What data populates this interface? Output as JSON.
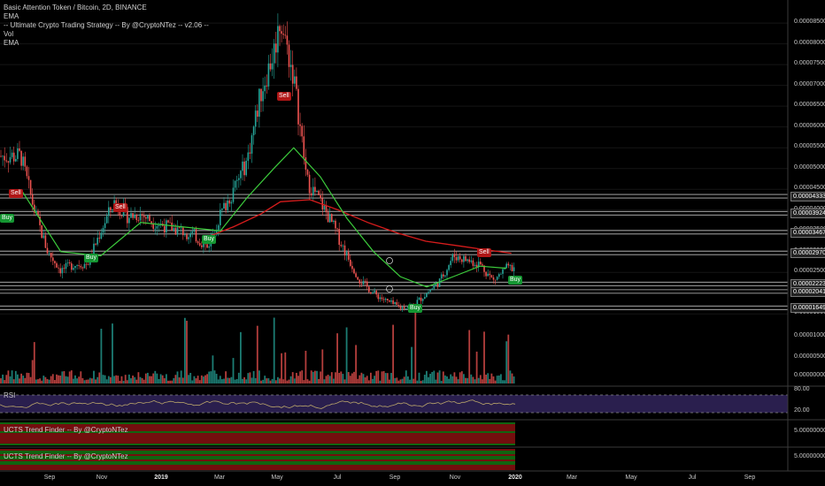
{
  "legend": {
    "title": "Basic Attention Token / Bitcoin, 2D, BINANCE",
    "lines": [
      "EMA",
      "-- Ultimate Crypto Trading Strategy -- By @CryptoNTez -- v2.06 --",
      "Vol",
      "EMA"
    ]
  },
  "panes": {
    "rsi_label": "RSI",
    "trend1_label": "UCTS Trend Finder -- By @CryptoNTez",
    "trend2_label": "UCTS Trend Finder -- By @CryptoNTez"
  },
  "colors": {
    "up": "#26a69a",
    "down": "#ef5350",
    "ema_fast": "#3ccc3c",
    "ema_slow": "#d81c1c",
    "rsi_line": "#b8a46a",
    "rsi_band": "#2a1f4e",
    "trend_green": "#1aa11a",
    "trend_red": "#b81717"
  },
  "chart_data": {
    "type": "candlestick",
    "symbol": "BAT/BTC",
    "timeframe": "2D",
    "exchange": "BINANCE",
    "price_axis_ticks": [
      "0.00008500",
      "0.00008000",
      "0.00007500",
      "0.00007000",
      "0.00006500",
      "0.00006000",
      "0.00005500",
      "0.00005000",
      "0.00004500",
      "0.00004000",
      "0.00003500",
      "0.00003000",
      "0.00002500",
      "0.00002000",
      "0.00001500"
    ],
    "price_range": [
      1.3e-05,
      8.9e-05
    ],
    "volume_axis_ticks": [
      "0.00001000",
      "0.00000500",
      "0.00000000"
    ],
    "rsi_axis_ticks": [
      "80.00",
      "20.00"
    ],
    "trend_axis_ticks": [
      "5.00000000",
      "5.00000000"
    ],
    "horizontal_levels": [
      "0.00004333",
      "0.00003924",
      "0.00003467",
      "0.00002970",
      "0.00002223",
      "0.00002041",
      "0.00001649"
    ],
    "x_ticks": [
      "Sep",
      "Nov",
      "2019",
      "Mar",
      "May",
      "Jul",
      "Sep",
      "Nov",
      "2020",
      "Mar",
      "May",
      "Jul",
      "Sep"
    ],
    "bold_x_ticks": [
      "2019",
      "2020"
    ],
    "close_trace": [
      [
        "2018-08-01",
        5.3e-05
      ],
      [
        "2018-08-15",
        4e-05
      ],
      [
        "2018-08-29",
        3e-05
      ],
      [
        "2018-09-12",
        2.55e-05
      ],
      [
        "2018-09-26",
        2.7e-05
      ],
      [
        "2018-10-10",
        2.7e-05
      ],
      [
        "2018-10-24",
        3.5e-05
      ],
      [
        "2018-11-07",
        4.2e-05
      ],
      [
        "2018-11-21",
        3.85e-05
      ],
      [
        "2018-12-05",
        3.9e-05
      ],
      [
        "2018-12-19",
        3.7e-05
      ],
      [
        "2019-01-02",
        3.6e-05
      ],
      [
        "2019-01-16",
        3.5e-05
      ],
      [
        "2019-01-30",
        3.4e-05
      ],
      [
        "2019-02-13",
        3.1e-05
      ],
      [
        "2019-02-27",
        3.9e-05
      ],
      [
        "2019-03-13",
        4.5e-05
      ],
      [
        "2019-03-27",
        5.2e-05
      ],
      [
        "2019-04-10",
        6.8e-05
      ],
      [
        "2019-04-24",
        7.8e-05
      ],
      [
        "2019-05-01",
        8.6e-05
      ],
      [
        "2019-05-15",
        7.2e-05
      ],
      [
        "2019-05-29",
        4.7e-05
      ],
      [
        "2019-06-12",
        4.2e-05
      ],
      [
        "2019-06-26",
        3.6e-05
      ],
      [
        "2019-07-10",
        2.9e-05
      ],
      [
        "2019-07-24",
        2.3e-05
      ],
      [
        "2019-08-07",
        2e-05
      ],
      [
        "2019-08-21",
        1.8e-05
      ],
      [
        "2019-09-04",
        1.65e-05
      ],
      [
        "2019-09-18",
        1.72e-05
      ],
      [
        "2019-10-02",
        2e-05
      ],
      [
        "2019-10-16",
        2.3e-05
      ],
      [
        "2019-10-30",
        2.9e-05
      ],
      [
        "2019-11-13",
        2.8e-05
      ],
      [
        "2019-11-27",
        2.7e-05
      ],
      [
        "2019-12-11",
        2.3e-05
      ],
      [
        "2019-12-25",
        2.6e-05
      ]
    ],
    "ema_fast_trace": [
      [
        "2018-08-01",
        4.5e-05
      ],
      [
        "2018-09-12",
        3e-05
      ],
      [
        "2018-10-24",
        2.9e-05
      ],
      [
        "2018-12-05",
        3.7e-05
      ],
      [
        "2019-01-16",
        3.6e-05
      ],
      [
        "2019-02-27",
        3.5e-05
      ],
      [
        "2019-03-27",
        4.3e-05
      ],
      [
        "2019-04-24",
        5e-05
      ],
      [
        "2019-05-15",
        5.5e-05
      ],
      [
        "2019-06-12",
        4.8e-05
      ],
      [
        "2019-07-10",
        3.8e-05
      ],
      [
        "2019-08-07",
        3e-05
      ],
      [
        "2019-09-04",
        2.4e-05
      ],
      [
        "2019-10-02",
        2.15e-05
      ],
      [
        "2019-10-30",
        2.4e-05
      ],
      [
        "2019-11-27",
        2.65e-05
      ],
      [
        "2019-12-25",
        2.6e-05
      ]
    ],
    "ema_slow_trace": [
      [
        "2019-02-13",
        3.35e-05
      ],
      [
        "2019-03-13",
        3.6e-05
      ],
      [
        "2019-04-10",
        3.9e-05
      ],
      [
        "2019-05-01",
        4.2e-05
      ],
      [
        "2019-06-01",
        4.25e-05
      ],
      [
        "2019-07-01",
        4e-05
      ],
      [
        "2019-08-01",
        3.7e-05
      ],
      [
        "2019-09-01",
        3.45e-05
      ],
      [
        "2019-10-01",
        3.25e-05
      ],
      [
        "2019-11-01",
        3.15e-05
      ],
      [
        "2019-12-01",
        3.05e-05
      ],
      [
        "2019-12-30",
        2.96e-05
      ]
    ],
    "signals": [
      {
        "label": "Sell",
        "side": "sell",
        "date": "2018-08-05"
      },
      {
        "label": "Buy",
        "side": "buy",
        "date": "2018-08-01"
      },
      {
        "label": "Buy",
        "side": "buy",
        "date": "2018-09-30"
      },
      {
        "label": "Sell",
        "side": "sell",
        "date": "2018-11-28"
      },
      {
        "label": "Buy",
        "side": "buy",
        "date": "2019-02-18"
      },
      {
        "label": "Sell",
        "side": "sell",
        "date": "2019-05-03"
      },
      {
        "label": "Buy",
        "side": "buy",
        "date": "2019-09-20"
      },
      {
        "label": "Sell",
        "side": "sell",
        "date": "2019-12-08"
      },
      {
        "label": "Buy",
        "side": "buy",
        "date": "2020-01-02"
      }
    ]
  }
}
